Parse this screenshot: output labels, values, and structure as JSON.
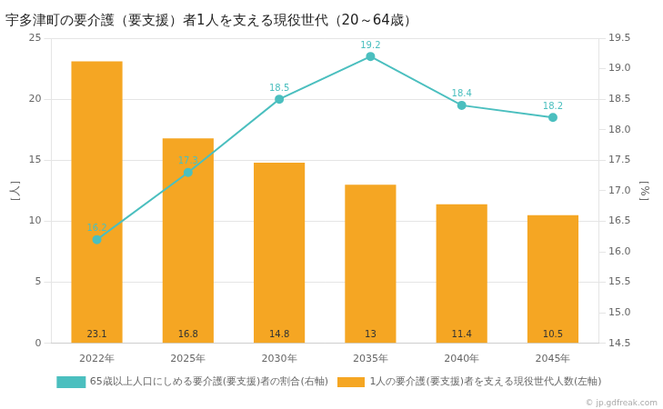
{
  "chart_data": {
    "type": "bar",
    "title": "宇多津町の要介護（要支援）者1人を支える現役世代（20～64歳）",
    "categories": [
      "2022年",
      "2025年",
      "2030年",
      "2035年",
      "2040年",
      "2045年"
    ],
    "series": [
      {
        "name": "1人の要介護(要支援)者を支える現役世代人数(左軸)",
        "type": "bar",
        "color": "#F5A623",
        "values": [
          23.1,
          16.8,
          14.8,
          13,
          11.4,
          10.5
        ]
      },
      {
        "name": "65歳以上人口にしめる要介護(要支援)者の割合(右軸)",
        "type": "line",
        "color": "#4BBFBF",
        "marker": "circle",
        "line_style": "solid",
        "axis": "y2",
        "values": [
          16.2,
          17.3,
          18.5,
          19.2,
          18.4,
          18.2
        ]
      }
    ],
    "ylabel": "［人］",
    "y2label": "［%］",
    "ylim": [
      0,
      25
    ],
    "yticks": [
      0,
      5,
      10,
      15,
      20,
      25
    ],
    "y2lim": [
      14.5,
      19.5
    ],
    "y2ticks": [
      14.5,
      {
        "value": 15,
        "label": "15.0"
      },
      15.5,
      {
        "value": 16,
        "label": "16.0"
      },
      16.5,
      {
        "value": 17,
        "label": "17.0"
      },
      17.5,
      {
        "value": 18,
        "label": "18.0"
      },
      18.5,
      {
        "value": 19,
        "label": "19.0"
      },
      19.5
    ],
    "grid": true,
    "legend": "bottom",
    "data_labels": true,
    "annotations": [
      "© jp.gdfreak.com"
    ]
  }
}
